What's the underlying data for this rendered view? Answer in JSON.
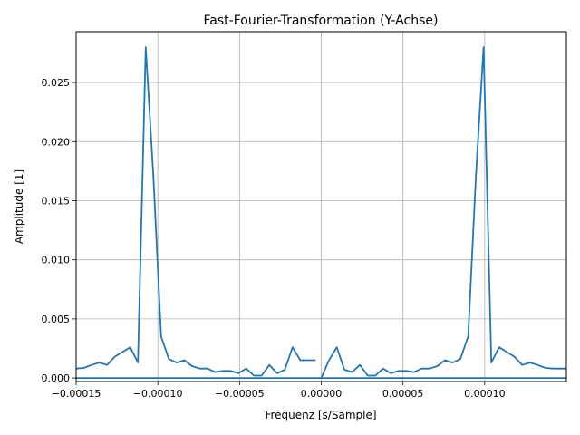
{
  "chart_data": {
    "type": "line",
    "title": "Fast-Fourier-Transformation (Y-Achse)",
    "xlabel": "Frequenz [s/Sample]",
    "ylabel": "Amplitude [1]",
    "xlim": [
      -0.00015,
      0.00015
    ],
    "ylim": [
      -0.0003,
      0.0293
    ],
    "grid": true,
    "xticks": [
      -0.00015,
      -0.0001,
      -5e-05,
      0.0,
      5e-05,
      0.0001
    ],
    "xtick_labels": [
      "−0.00015",
      "−0.00010",
      "−0.00005",
      "0.00000",
      "0.00005",
      "0.00010"
    ],
    "yticks": [
      0.0,
      0.005,
      0.01,
      0.015,
      0.02,
      0.025
    ],
    "ytick_labels": [
      "0.000",
      "0.005",
      "0.010",
      "0.015",
      "0.020",
      "0.025"
    ],
    "series": [
      {
        "color": "#1f77b4",
        "segments": [
          {
            "x": [
              -0.00015,
              -0.0001453,
              -0.0001405,
              -0.0001358,
              -0.0001311,
              -0.0001264,
              -0.0001216,
              -0.0001169,
              -0.0001122,
              -0.0001074,
              -0.0001027,
              -9.8e-05,
              -9.32e-05,
              -8.85e-05,
              -8.38e-05,
              -7.91e-05,
              -7.43e-05,
              -6.96e-05,
              -6.49e-05,
              -6.01e-05,
              -5.54e-05,
              -5.07e-05,
              -4.59e-05,
              -4.12e-05,
              -3.65e-05,
              -3.18e-05,
              -2.7e-05,
              -2.23e-05,
              -1.76e-05,
              -1.28e-05,
              -8.1e-06,
              -3.4e-06
            ],
            "y": [
              0.0008,
              0.00085,
              0.0011,
              0.0013,
              0.0011,
              0.0018,
              0.0022,
              0.0026,
              0.0013,
              0.028,
              0.017,
              0.0035,
              0.0016,
              0.0013,
              0.0015,
              0.001,
              0.0008,
              0.0008,
              0.0005,
              0.0006,
              0.0006,
              0.0004,
              0.0008,
              0.0002,
              0.0002,
              0.0011,
              0.0004,
              0.0007,
              0.0026,
              0.0015,
              0.0015,
              0.0015
            ]
          },
          {
            "x": [
              0.0,
              4.7e-06,
              9.5e-06,
              1.42e-05,
              1.89e-05,
              2.37e-05,
              2.84e-05,
              3.31e-05,
              3.78e-05,
              4.26e-05,
              4.73e-05,
              5.2e-05,
              5.68e-05,
              6.15e-05,
              6.62e-05,
              7.1e-05,
              7.57e-05,
              8.04e-05,
              8.51e-05,
              8.99e-05,
              9.46e-05,
              9.93e-05,
              0.0001041,
              0.0001088,
              0.0001135,
              0.0001182,
              0.000123,
              0.0001277,
              0.0001324,
              0.0001372,
              0.0001419,
              0.0001466,
              0.00015
            ],
            "y": [
              0.0,
              0.0015,
              0.0026,
              0.0007,
              0.0005,
              0.0011,
              0.0002,
              0.0002,
              0.0008,
              0.0004,
              0.0006,
              0.0006,
              0.0005,
              0.0008,
              0.0008,
              0.001,
              0.0015,
              0.0013,
              0.0016,
              0.0035,
              0.017,
              0.028,
              0.0013,
              0.0026,
              0.0022,
              0.0018,
              0.0011,
              0.0013,
              0.0011,
              0.00085,
              0.0008,
              0.0008,
              0.0008
            ]
          },
          {
            "x": [
              -0.00015,
              0.00015
            ],
            "y": [
              0.0,
              0.0
            ]
          }
        ]
      }
    ]
  }
}
